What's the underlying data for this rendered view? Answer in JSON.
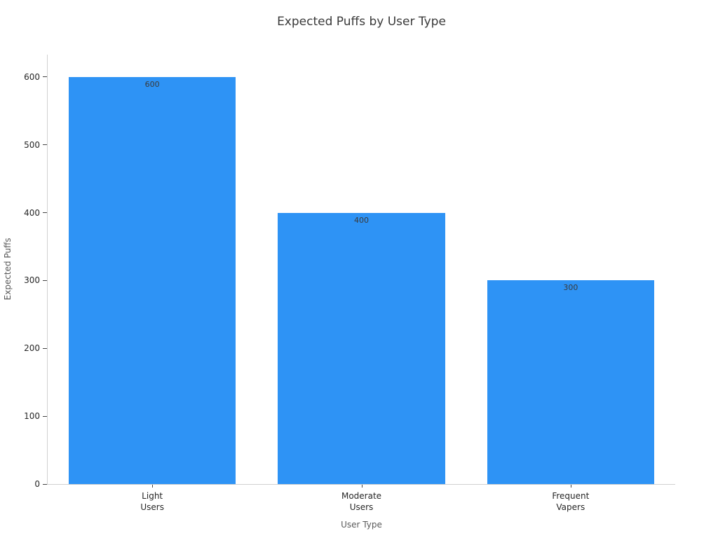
{
  "chart_data": {
    "type": "bar",
    "title": "Expected Puffs by User Type",
    "xlabel": "User Type",
    "ylabel": "Expected Puffs",
    "categories": [
      "Light\nUsers",
      "Moderate\nUsers",
      "Frequent\nVapers"
    ],
    "values": [
      600,
      400,
      300
    ],
    "bar_labels": [
      "600",
      "400",
      "300"
    ],
    "yticks": [
      0,
      100,
      200,
      300,
      400,
      500,
      600
    ],
    "ylim": [
      0,
      633
    ],
    "bar_color": "#2E93F5",
    "grid": false,
    "legend": "none"
  }
}
